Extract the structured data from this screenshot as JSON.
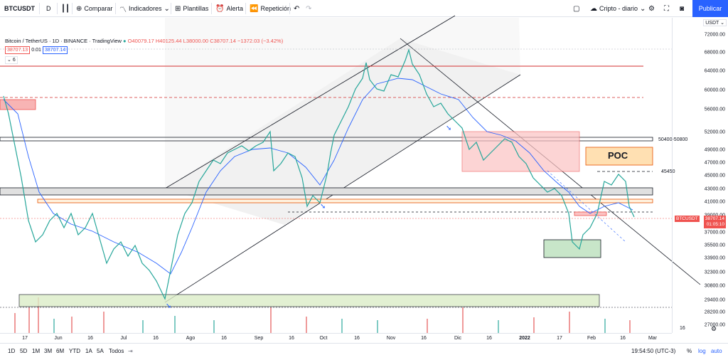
{
  "toolbar": {
    "symbol": "BTCUSDT",
    "interval": "D",
    "compare": "Comparar",
    "indicators": "Indicadores",
    "templates": "Plantillas",
    "alert": "Alerta",
    "replay": "Repetición",
    "layout": "Cripto - diario",
    "publish": "Publicar"
  },
  "legend": {
    "title": "Bitcoin / TetherUS · 1D · BINANCE · TradingView",
    "ohlc": "O40079.17 H40125.44 L38000.00 C38707.14 −1372.03 (−3.42%)",
    "bid": "38707.13",
    "spread": "0.01",
    "ask": "38707.14",
    "indicator_count": "6"
  },
  "price_axis": {
    "currency": "USDT",
    "labels": [
      "72000.00",
      "68000.00",
      "64000.00",
      "60000.00",
      "56000.00",
      "52000.00",
      "49000.00",
      "47000.00",
      "45000.00",
      "43000.00",
      "41000.00",
      "39000.00",
      "37000.00",
      "35500.00",
      "33900.00",
      "32300.00",
      "30800.00",
      "29400.00",
      "28200.00",
      "27000.00"
    ],
    "current_symbol": "BTCUSDT",
    "current_price": "38707.14",
    "countdown": "01:05:10"
  },
  "annotations": {
    "zone_label": "50400-50800",
    "level_label": "45450",
    "poc": "POC"
  },
  "time_axis": [
    "17",
    "Jun",
    "16",
    "Jul",
    "16",
    "Ago",
    "16",
    "Sep",
    "16",
    "Oct",
    "16",
    "Nov",
    "16",
    "Dic",
    "16",
    "2022",
    "17",
    "Feb",
    "16",
    "Mar",
    "16"
  ],
  "bottom": {
    "ranges": [
      "1D",
      "5D",
      "1M",
      "3M",
      "6M",
      "YTD",
      "1A",
      "5A",
      "Todos"
    ],
    "clock": "19:54:50 (UTC-3)",
    "pct": "%",
    "log": "log",
    "auto": "auto"
  },
  "colors": {
    "accent": "#2962ff",
    "up": "#26a69a",
    "down": "#ef5350"
  }
}
